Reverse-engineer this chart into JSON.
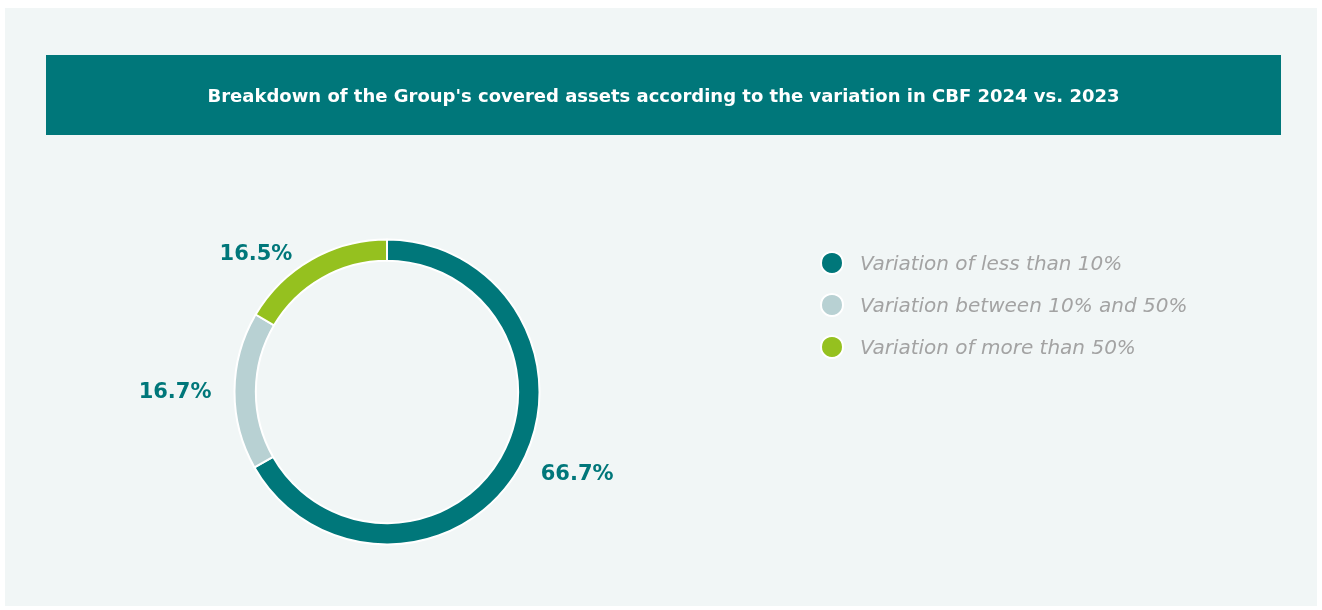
{
  "chart_data": {
    "type": "donut",
    "title": "Breakdown of the Group's covered assets according to the variation in CBF 2024 vs. 2023",
    "categories": [
      "Variation of less than 10%",
      "Variation between 10% and 50%",
      "Variation of more than 50%"
    ],
    "values": [
      66.7,
      16.7,
      16.5
    ],
    "colors": [
      "#00777a",
      "#b8d1d3",
      "#95c11f"
    ],
    "value_labels": [
      "66.7%",
      "16.7%",
      "16.5%"
    ],
    "legend": "right"
  }
}
